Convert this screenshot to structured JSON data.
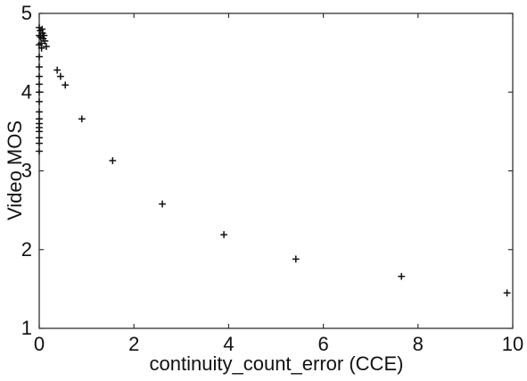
{
  "chart_data": {
    "type": "scatter",
    "title": "",
    "xlabel": "continuity_count_error (CCE)",
    "ylabel": "Video MOS",
    "xlim": [
      0,
      10
    ],
    "ylim": [
      1,
      5
    ],
    "x_ticks": [
      0,
      2,
      4,
      6,
      8,
      10
    ],
    "y_ticks": [
      1,
      2,
      3,
      4,
      5
    ],
    "x_tick_labels": [
      "0",
      "2",
      "4",
      "6",
      "8",
      "10"
    ],
    "y_tick_labels": [
      "1",
      "2",
      "3",
      "4",
      "5"
    ],
    "grid": false,
    "legend": "none",
    "marker_color": "#111111",
    "series": [
      {
        "points": [
          {
            "x": 0.0,
            "y": 3.25
          },
          {
            "x": 0.0,
            "y": 3.35
          },
          {
            "x": 0.0,
            "y": 3.42
          },
          {
            "x": 0.0,
            "y": 3.5
          },
          {
            "x": 0.0,
            "y": 3.55
          },
          {
            "x": 0.0,
            "y": 3.6
          },
          {
            "x": 0.0,
            "y": 3.66
          },
          {
            "x": 0.0,
            "y": 3.75
          },
          {
            "x": 0.0,
            "y": 3.88
          },
          {
            "x": 0.0,
            "y": 4.0
          },
          {
            "x": 0.0,
            "y": 4.1
          },
          {
            "x": 0.0,
            "y": 4.2
          },
          {
            "x": 0.0,
            "y": 4.32
          },
          {
            "x": 0.0,
            "y": 4.45
          },
          {
            "x": 0.0,
            "y": 4.6
          },
          {
            "x": 0.0,
            "y": 4.72
          },
          {
            "x": 0.0,
            "y": 4.82
          },
          {
            "x": 0.02,
            "y": 4.78
          },
          {
            "x": 0.03,
            "y": 4.7
          },
          {
            "x": 0.04,
            "y": 4.62
          },
          {
            "x": 0.05,
            "y": 4.56
          },
          {
            "x": 0.06,
            "y": 4.8
          },
          {
            "x": 0.07,
            "y": 4.75
          },
          {
            "x": 0.08,
            "y": 4.68
          },
          {
            "x": 0.1,
            "y": 4.72
          },
          {
            "x": 0.12,
            "y": 4.65
          },
          {
            "x": 0.15,
            "y": 4.58
          },
          {
            "x": 0.38,
            "y": 4.28
          },
          {
            "x": 0.45,
            "y": 4.2
          },
          {
            "x": 0.55,
            "y": 4.09
          },
          {
            "x": 0.9,
            "y": 3.66
          },
          {
            "x": 1.55,
            "y": 3.13
          },
          {
            "x": 2.6,
            "y": 2.58
          },
          {
            "x": 3.9,
            "y": 2.19
          },
          {
            "x": 5.42,
            "y": 1.88
          },
          {
            "x": 7.65,
            "y": 1.66
          },
          {
            "x": 9.88,
            "y": 1.45
          }
        ]
      }
    ]
  }
}
